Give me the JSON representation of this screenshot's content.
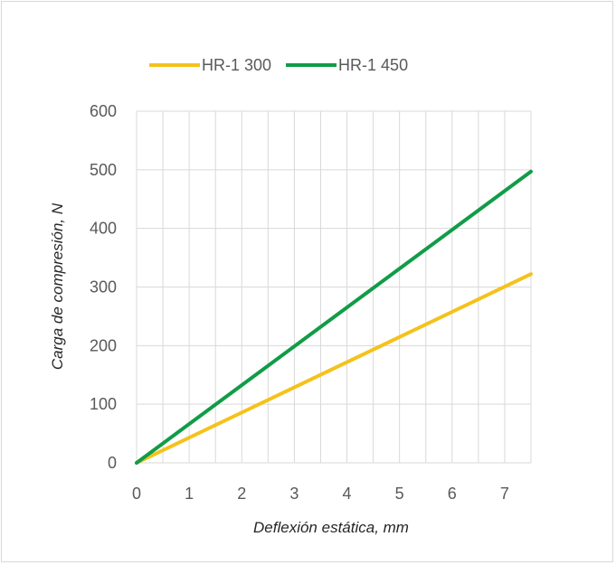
{
  "chart_data": {
    "type": "line",
    "xlabel": "Deflexión estática, mm",
    "ylabel": "Carga de compresión, N",
    "xlim": [
      0,
      7.5
    ],
    "ylim": [
      0,
      600
    ],
    "xticks": [
      0,
      1,
      2,
      3,
      4,
      5,
      6,
      7
    ],
    "yticks": [
      0,
      100,
      200,
      300,
      400,
      500,
      600
    ],
    "grid": true,
    "legend_position": "top",
    "series": [
      {
        "name": "HR-1 300",
        "color": "#f5c21b",
        "x": [
          0,
          7.5
        ],
        "y": [
          0,
          322
        ]
      },
      {
        "name": "HR-1 450",
        "color": "#119c47",
        "x": [
          0,
          7.5
        ],
        "y": [
          0,
          497
        ]
      }
    ]
  }
}
